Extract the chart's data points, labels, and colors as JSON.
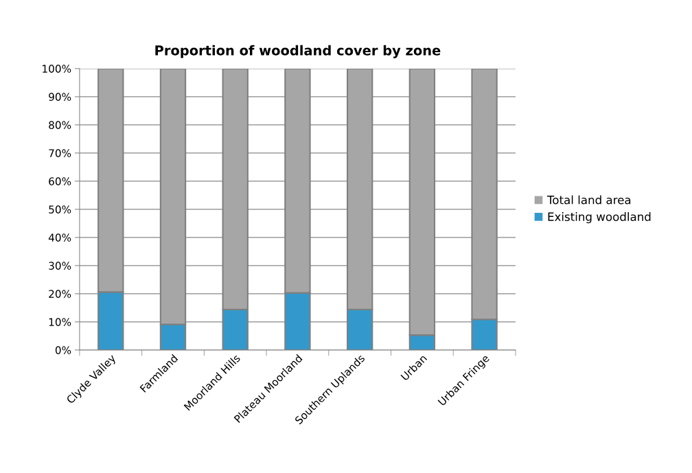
{
  "chart_data": {
    "type": "bar",
    "title": "Proportion of woodland cover by zone",
    "stacked": true,
    "categories": [
      "Clyde Valley",
      "Farmland",
      "Moorland Hills",
      "Plateau Moorland",
      "Southern Uplands",
      "Urban",
      "Urban Fringe"
    ],
    "series": [
      {
        "name": "Existing woodland",
        "color": "#3399cc",
        "values": [
          20.6,
          9.1,
          14.4,
          20.3,
          14.4,
          5.3,
          10.9
        ]
      },
      {
        "name": "Total land area",
        "color": "#a6a6a6",
        "values": [
          79.4,
          90.9,
          85.6,
          79.7,
          85.6,
          94.7,
          89.1
        ]
      }
    ],
    "ylim": [
      0,
      100
    ],
    "yticks": [
      {
        "value": 0,
        "label": "0%"
      },
      {
        "value": 10,
        "label": "10%"
      },
      {
        "value": 20,
        "label": "20%"
      },
      {
        "value": 30,
        "label": "30%"
      },
      {
        "value": 40,
        "label": "40%"
      },
      {
        "value": 50,
        "label": "50%"
      },
      {
        "value": 60,
        "label": "60%"
      },
      {
        "value": 70,
        "label": "70%"
      },
      {
        "value": 80,
        "label": "80%"
      },
      {
        "value": 90,
        "label": "90%"
      },
      {
        "value": 100,
        "label": "100%"
      }
    ],
    "grid": "y",
    "legend": "right"
  }
}
